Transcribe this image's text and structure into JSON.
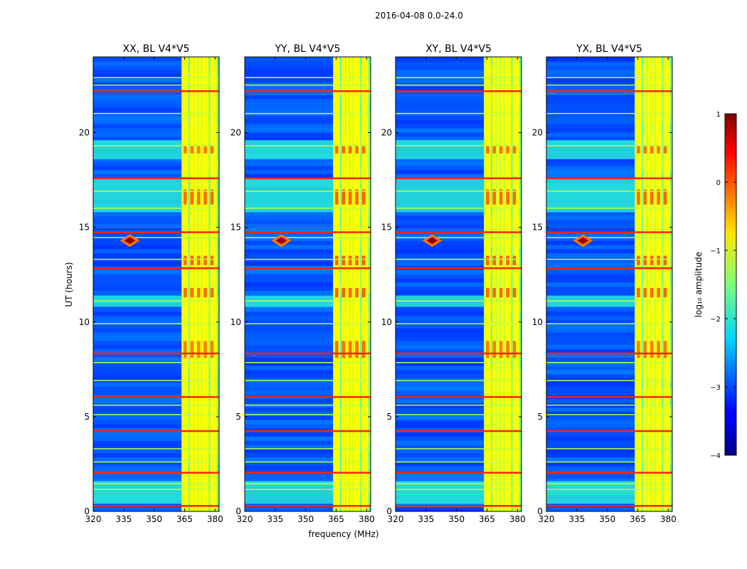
{
  "chart_data": {
    "type": "heatmap",
    "suptitle": "2016-04-08 0.0-24.0",
    "xlabel": "frequency (MHz)",
    "ylabel": "UT (hours)",
    "xlim": [
      320,
      382
    ],
    "ylim": [
      0,
      24
    ],
    "xticks": [
      320,
      335,
      350,
      365,
      380
    ],
    "yticks": [
      0,
      5,
      10,
      15,
      20
    ],
    "panels": [
      {
        "title": "XX, BL V4*V5",
        "band_start_mhz": 363.5,
        "cross_intensity": 1.0
      },
      {
        "title": "YY, BL V4*V5",
        "band_start_mhz": 363.5,
        "cross_intensity": 0.7
      },
      {
        "title": "XY, BL V4*V5",
        "band_start_mhz": 363.5,
        "cross_intensity": 0.9
      },
      {
        "title": "YX, BL V4*V5",
        "band_start_mhz": 363.5,
        "cross_intensity": 0.9
      }
    ],
    "colorbar": {
      "label": "log₁₀ amplitude",
      "ticks": [
        1,
        0,
        -1,
        -2,
        -3,
        -4
      ],
      "vmin": -4,
      "vmax": 1,
      "colormap": "jet"
    },
    "background_level": -3.0,
    "features": {
      "rfi_lines_hours": [
        0.3,
        1.15,
        1.45,
        2.05,
        2.6,
        3.3,
        4.25,
        5.1,
        5.6,
        6.05,
        6.9,
        7.85,
        8.35,
        9.9,
        11.1,
        12.85,
        13.3,
        14.45,
        14.75,
        16.0,
        16.9,
        17.6,
        19.3,
        21.0,
        22.2,
        22.5,
        22.9
      ],
      "band_channels_mhz": [
        364.5,
        366.0,
        368.5,
        370.5,
        372.5,
        374.5,
        376.0,
        378.5,
        380.0
      ],
      "burst": {
        "freq_mhz": 338.0,
        "ut_hours": 14.3
      },
      "enhanced_periods_hours": [
        [
          15.8,
          17.6
        ],
        [
          0.4,
          1.6
        ],
        [
          10.8,
          11.4
        ],
        [
          18.6,
          19.6
        ]
      ]
    }
  }
}
